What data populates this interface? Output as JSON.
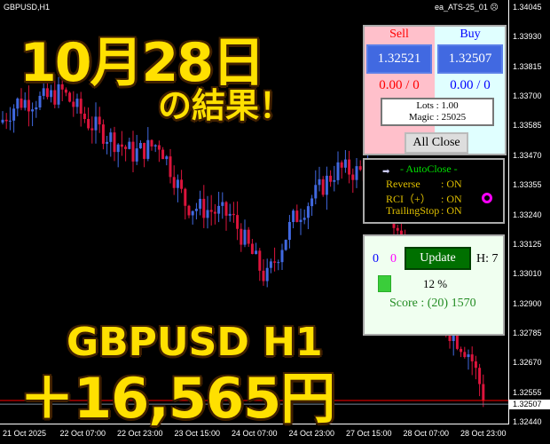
{
  "chart": {
    "symbol": "GBPUSD,H1",
    "ea_name": "ea_ATS-25_01",
    "ea_status_icon": "sad-face-icon",
    "price_axis": [
      "1.34045",
      "1.33930",
      "1.33815",
      "1.33700",
      "1.33585",
      "1.33470",
      "1.33355",
      "1.33240",
      "1.33125",
      "1.33010",
      "1.32900",
      "1.32785",
      "1.32670",
      "1.32555",
      "1.32440"
    ],
    "current_price": "1.32507",
    "bid_line_price": "1.32521",
    "time_axis": [
      "21 Oct 2025",
      "22 Oct 07:00",
      "22 Oct 23:00",
      "23 Oct 15:00",
      "24 Oct 07:00",
      "24 Oct 23:00",
      "27 Oct 15:00",
      "28 Oct 07:00",
      "28 Oct 23:00"
    ],
    "colors": {
      "bull": "#4169e1",
      "bear": "#dc143c",
      "background": "#000000"
    }
  },
  "overlay": {
    "date": "10月28日",
    "result": "の結果！",
    "pair": "GBPUSD H1",
    "profit": "＋16,565円"
  },
  "trade_panel": {
    "sell_label": "Sell",
    "buy_label": "Buy",
    "sell_price": "1.32521",
    "buy_price": "1.32507",
    "sell_pl": "0.00 / 0",
    "buy_pl": "0.00 / 0",
    "lots": "Lots   : 1.00",
    "magic": "Magic : 25025",
    "all_close": "All Close"
  },
  "autoclose": {
    "title": "- AutoClose -",
    "rows": [
      {
        "label": "Reverse",
        "value": ": ON"
      },
      {
        "label": "RCI（+）",
        "value": ": ON"
      },
      {
        "label": "TrailingStop",
        "value": ": ON"
      }
    ]
  },
  "stats": {
    "count_blue": "0",
    "count_magenta": "0",
    "update": "Update",
    "hours": "H: 7",
    "percent": "12 %",
    "progress": 0.12,
    "score": "Score : (20) 1570"
  }
}
